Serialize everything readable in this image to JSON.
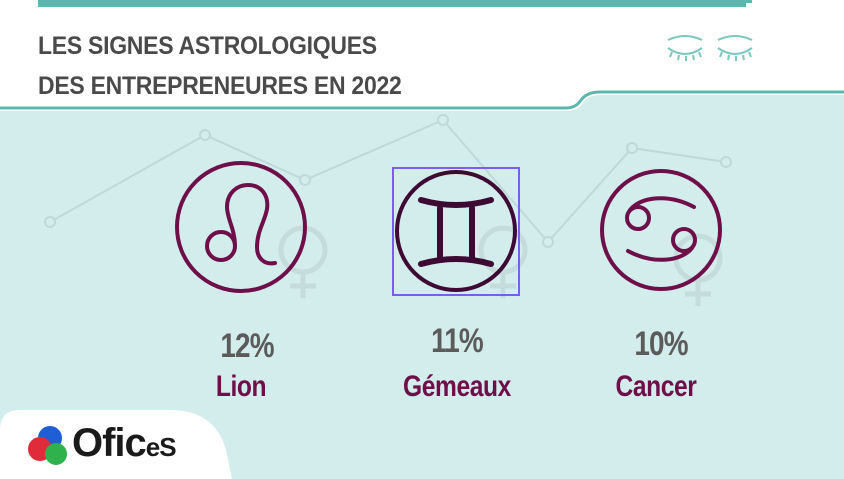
{
  "header": {
    "title_line1": "LES SIGNES ASTROLOGIQUES",
    "title_line2": "DES ENTREPRENEURES EN 2022"
  },
  "colors": {
    "background": "#d3ecec",
    "accent_teal": "#5bb8ae",
    "sign_purple": "#6e0f4a",
    "percent_grey": "#5b5b5b",
    "selection": "#7b5cf0"
  },
  "signs": [
    {
      "icon": "leo-icon",
      "percent": "12%",
      "name": "Lion"
    },
    {
      "icon": "gemini-icon",
      "percent": "11%",
      "name": "Gémeaux"
    },
    {
      "icon": "cancer-icon",
      "percent": "10%",
      "name": "Cancer"
    }
  ],
  "logo": {
    "text_main": "Ofic",
    "text_small": "eS"
  }
}
